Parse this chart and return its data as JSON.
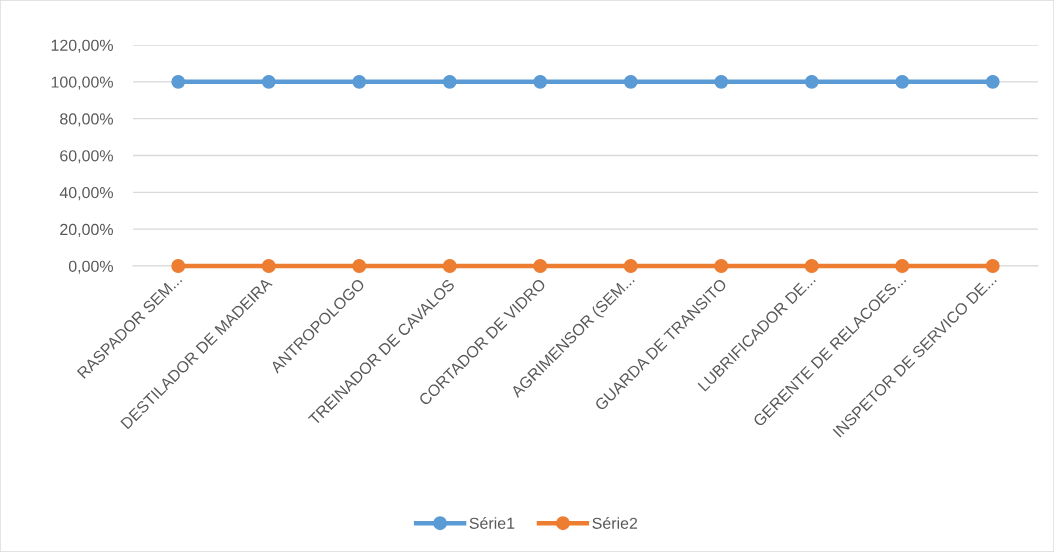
{
  "chart_data": {
    "type": "line",
    "categories": [
      "RASPADOR SEM...",
      "DESTILADOR DE MADEIRA",
      "ANTROPOLOGO",
      "TREINADOR DE CAVALOS",
      "CORTADOR DE VIDRO",
      "AGRIMENSOR (SEM...",
      "GUARDA DE TRANSITO",
      "LUBRIFICADOR DE...",
      "GERENTE DE RELACOES...",
      "INSPETOR DE SERVICO DE..."
    ],
    "series": [
      {
        "name": "Série1",
        "color": "#5b9bd5",
        "values": [
          100,
          100,
          100,
          100,
          100,
          100,
          100,
          100,
          100,
          100
        ]
      },
      {
        "name": "Série2",
        "color": "#ed7d31",
        "values": [
          0,
          0,
          0,
          0,
          0,
          0,
          0,
          0,
          0,
          0
        ]
      }
    ],
    "ylim": [
      0,
      120
    ],
    "yticks": [
      {
        "value": 0,
        "label": "0,00%"
      },
      {
        "value": 20,
        "label": "20,00%"
      },
      {
        "value": 40,
        "label": "40,00%"
      },
      {
        "value": 60,
        "label": "60,00%"
      },
      {
        "value": 80,
        "label": "80,00%"
      },
      {
        "value": 100,
        "label": "100,00%"
      },
      {
        "value": 120,
        "label": "120,00%"
      }
    ],
    "grid": "y",
    "legend": "bottom",
    "marker": "circle",
    "line_style": "solid"
  }
}
